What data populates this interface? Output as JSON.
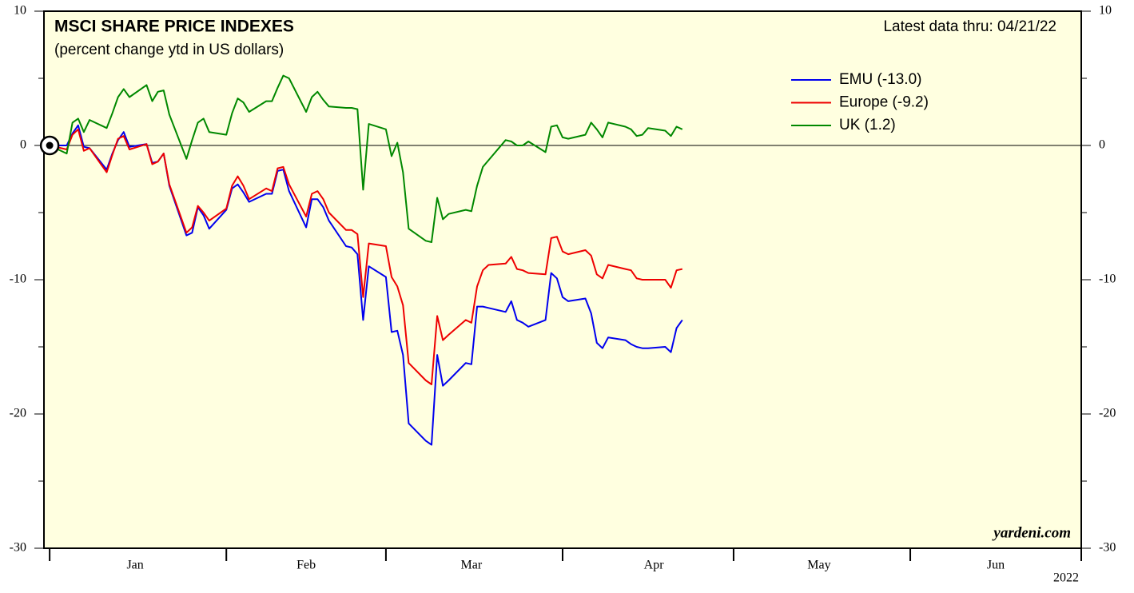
{
  "chart_data": {
    "type": "line",
    "title": "MSCI SHARE PRICE INDEXES",
    "subtitle": "(percent change ytd in US dollars)",
    "note": "Latest data thru: 04/21/22",
    "source": "yardeni.com",
    "year_label": "2022",
    "legend": "upper right",
    "xlim": [
      -1,
      181
    ],
    "xticks": [
      {
        "value": 15,
        "label": "Jan"
      },
      {
        "value": 45,
        "label": "Feb"
      },
      {
        "value": 74,
        "label": "Mar"
      },
      {
        "value": 106,
        "label": "Apr"
      },
      {
        "value": 135,
        "label": "May"
      },
      {
        "value": 166,
        "label": "Jun"
      }
    ],
    "xminorticks": [
      0,
      31,
      59,
      90,
      120,
      151,
      181
    ],
    "ylim": [
      -30,
      10
    ],
    "yticks": [
      -30,
      -20,
      -10,
      0,
      10
    ],
    "yminorticks": [
      -25,
      -15,
      -5,
      5
    ],
    "y2lim": [
      -30,
      10
    ],
    "y2ticks": [
      -30,
      -20,
      -10,
      0,
      10
    ],
    "x": [
      0,
      3,
      4,
      5,
      6,
      7,
      10,
      11,
      12,
      13,
      14,
      17,
      18,
      19,
      20,
      21,
      24,
      25,
      26,
      27,
      28,
      31,
      32,
      33,
      34,
      35,
      38,
      39,
      40,
      41,
      42,
      45,
      46,
      47,
      48,
      49,
      52,
      53,
      54,
      55,
      56,
      59,
      60,
      61,
      62,
      63,
      66,
      67,
      68,
      69,
      70,
      73,
      74,
      75,
      76,
      77,
      80,
      81,
      82,
      83,
      84,
      87,
      88,
      89,
      90,
      91,
      94,
      95,
      96,
      97,
      98,
      101,
      102,
      103,
      104,
      105,
      108,
      109,
      110,
      111
    ],
    "series": [
      {
        "name": "EMU (-13.0)",
        "color": "#0000ee",
        "values": [
          0,
          0,
          0.9,
          1.5,
          -0.1,
          -0.2,
          -1.8,
          -0.6,
          0.4,
          1.0,
          -0.1,
          0.1,
          -1.3,
          -1.2,
          -0.6,
          -3.0,
          -6.7,
          -6.5,
          -4.6,
          -5.2,
          -6.2,
          -4.8,
          -3.2,
          -2.9,
          -3.5,
          -4.2,
          -3.6,
          -3.6,
          -1.9,
          -1.8,
          -3.4,
          -6.1,
          -4.0,
          -4.0,
          -4.6,
          -5.6,
          -7.5,
          -7.6,
          -8.1,
          -13.0,
          -9.0,
          -9.8,
          -13.9,
          -13.8,
          -15.6,
          -20.7,
          -22.0,
          -22.3,
          -15.6,
          -17.9,
          -17.5,
          -16.2,
          -16.3,
          -12.0,
          -12.0,
          -12.1,
          -12.4,
          -11.6,
          -13.0,
          -13.2,
          -13.5,
          -13.0,
          -9.5,
          -9.9,
          -11.3,
          -11.6,
          -11.4,
          -12.5,
          -14.7,
          -15.1,
          -14.3,
          -14.5,
          -14.8,
          -15.0,
          -15.1,
          -15.1,
          -15.0,
          -15.4,
          -13.6,
          -13.0
        ]
      },
      {
        "name": "Europe (-9.2)",
        "color": "#ee0000",
        "values": [
          0,
          -0.3,
          0.8,
          1.2,
          -0.4,
          -0.2,
          -2.0,
          -0.7,
          0.5,
          0.7,
          -0.3,
          0.1,
          -1.4,
          -1.2,
          -0.6,
          -2.9,
          -6.5,
          -6.1,
          -4.5,
          -5.0,
          -5.6,
          -4.7,
          -3.0,
          -2.3,
          -3.0,
          -4.0,
          -3.2,
          -3.4,
          -1.7,
          -1.6,
          -2.9,
          -5.3,
          -3.6,
          -3.4,
          -4.0,
          -5.0,
          -6.3,
          -6.3,
          -6.6,
          -11.3,
          -7.3,
          -7.5,
          -9.8,
          -10.5,
          -11.9,
          -16.2,
          -17.5,
          -17.8,
          -12.7,
          -14.5,
          -14.1,
          -13.0,
          -13.2,
          -10.5,
          -9.3,
          -8.9,
          -8.8,
          -8.3,
          -9.2,
          -9.3,
          -9.5,
          -9.6,
          -6.9,
          -6.8,
          -7.9,
          -8.1,
          -7.8,
          -8.2,
          -9.6,
          -9.9,
          -8.9,
          -9.2,
          -9.3,
          -9.9,
          -10.0,
          -10.0,
          -10.0,
          -10.6,
          -9.3,
          -9.2
        ]
      },
      {
        "name": "UK (1.2)",
        "color": "#008800",
        "values": [
          0,
          -0.6,
          1.7,
          2.0,
          1.0,
          1.9,
          1.3,
          2.4,
          3.6,
          4.2,
          3.6,
          4.5,
          3.3,
          4.0,
          4.1,
          2.3,
          -1.0,
          0.4,
          1.7,
          2.0,
          1.0,
          0.8,
          2.4,
          3.5,
          3.2,
          2.5,
          3.3,
          3.3,
          4.3,
          5.2,
          5.0,
          2.5,
          3.6,
          4.0,
          3.4,
          2.9,
          2.8,
          2.8,
          2.7,
          -3.3,
          1.6,
          1.2,
          -0.8,
          0.2,
          -2.0,
          -6.2,
          -7.1,
          -7.2,
          -3.9,
          -5.5,
          -5.1,
          -4.8,
          -4.9,
          -3.0,
          -1.6,
          -1.1,
          0.4,
          0.3,
          0,
          0,
          0.3,
          -0.5,
          1.4,
          1.5,
          0.6,
          0.5,
          0.8,
          1.7,
          1.2,
          0.6,
          1.7,
          1.4,
          1.2,
          0.7,
          0.8,
          1.3,
          1.1,
          0.7,
          1.4,
          1.2
        ]
      }
    ]
  }
}
